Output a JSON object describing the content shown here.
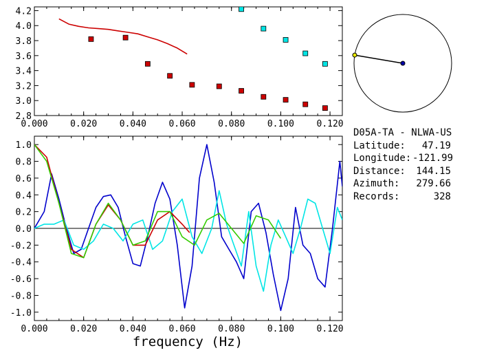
{
  "station": {
    "title": "D05A-TA - NLWA-US",
    "rows": [
      {
        "label": "Latitude:",
        "value": "47.19"
      },
      {
        "label": "Longitude:",
        "value": "-121.99"
      },
      {
        "label": "Distance:",
        "value": "144.15"
      },
      {
        "label": "Azimuth:",
        "value": "279.66"
      },
      {
        "label": "Records:",
        "value": "328"
      }
    ]
  },
  "colors": {
    "observed": "#cc0000",
    "cyan": "#00e5e5",
    "blue": "#0000cc",
    "green": "#33cc00",
    "azimuth_marker": "#e8e800"
  },
  "azimuth_deg": 279.66,
  "chart_data": [
    {
      "type": "scatter",
      "title": "",
      "xlabel": "",
      "ylabel": "",
      "xlim": [
        0.0,
        0.125
      ],
      "ylim": [
        2.8,
        4.25
      ],
      "xticks": [
        "0.000",
        "0.020",
        "0.040",
        "0.060",
        "0.080",
        "0.100",
        "0.120"
      ],
      "yticks": [
        "2.8",
        "3.0",
        "3.2",
        "3.4",
        "3.6",
        "3.8",
        "4.0",
        "4.2"
      ],
      "series": [
        {
          "kind": "points",
          "color": "red",
          "x": [
            0.023,
            0.037,
            0.046,
            0.055,
            0.064,
            0.075,
            0.084,
            0.093,
            0.102,
            0.11,
            0.118
          ],
          "y": [
            3.82,
            3.84,
            3.49,
            3.33,
            3.21,
            3.19,
            3.13,
            3.05,
            3.01,
            2.95,
            2.9
          ]
        },
        {
          "kind": "points",
          "color": "cyan",
          "x": [
            0.084,
            0.093,
            0.102,
            0.11,
            0.118
          ],
          "y": [
            4.22,
            3.96,
            3.81,
            3.63,
            3.49
          ]
        },
        {
          "kind": "line",
          "color": "red",
          "x": [
            0.01,
            0.014,
            0.018,
            0.022,
            0.026,
            0.03,
            0.034,
            0.038,
            0.042,
            0.046,
            0.05,
            0.054,
            0.058,
            0.062
          ],
          "y": [
            4.09,
            4.02,
            3.99,
            3.97,
            3.96,
            3.95,
            3.93,
            3.91,
            3.89,
            3.85,
            3.81,
            3.76,
            3.7,
            3.62
          ]
        }
      ]
    },
    {
      "type": "line",
      "title": "",
      "xlabel": "frequency (Hz)",
      "ylabel": "",
      "xlim": [
        0.0,
        0.125
      ],
      "ylim": [
        -1.1,
        1.1
      ],
      "xticks": [
        "0.000",
        "0.020",
        "0.040",
        "0.060",
        "0.080",
        "0.100",
        "0.120"
      ],
      "yticks": [
        "1.0",
        "0.8",
        "0.6",
        "0.4",
        "0.2",
        "0.0",
        "-0.2",
        "-0.4",
        "-0.6",
        "-0.8",
        "-1.0"
      ],
      "series": [
        {
          "color": "blue",
          "x": [
            0.0,
            0.004,
            0.007,
            0.01,
            0.013,
            0.016,
            0.019,
            0.022,
            0.025,
            0.028,
            0.031,
            0.034,
            0.037,
            0.04,
            0.043,
            0.046,
            0.049,
            0.052,
            0.055,
            0.058,
            0.061,
            0.064,
            0.067,
            0.07,
            0.073,
            0.076,
            0.079,
            0.082,
            0.085,
            0.088,
            0.091,
            0.094,
            0.097,
            0.1,
            0.103,
            0.106,
            0.109,
            0.112,
            0.115,
            0.118,
            0.121,
            0.124,
            0.125
          ],
          "y": [
            0.0,
            0.2,
            0.65,
            0.35,
            0.0,
            -0.3,
            -0.25,
            0.0,
            0.25,
            0.38,
            0.4,
            0.25,
            -0.1,
            -0.42,
            -0.45,
            -0.1,
            0.3,
            0.55,
            0.35,
            -0.2,
            -0.95,
            -0.45,
            0.6,
            1.0,
            0.55,
            -0.1,
            -0.25,
            -0.4,
            -0.6,
            0.2,
            0.3,
            -0.05,
            -0.55,
            -0.98,
            -0.6,
            0.25,
            -0.2,
            -0.3,
            -0.6,
            -0.7,
            0.0,
            0.8,
            0.5
          ]
        },
        {
          "color": "cyan",
          "x": [
            0.0,
            0.004,
            0.008,
            0.012,
            0.016,
            0.02,
            0.024,
            0.028,
            0.032,
            0.036,
            0.04,
            0.044,
            0.048,
            0.052,
            0.056,
            0.06,
            0.064,
            0.068,
            0.072,
            0.075,
            0.078,
            0.081,
            0.084,
            0.087,
            0.09,
            0.093,
            0.096,
            0.099,
            0.102,
            0.105,
            0.108,
            0.111,
            0.114,
            0.117,
            0.12,
            0.123,
            0.125
          ],
          "y": [
            0.0,
            0.05,
            0.05,
            0.1,
            -0.2,
            -0.25,
            -0.15,
            0.05,
            0.0,
            -0.15,
            0.05,
            0.1,
            -0.25,
            -0.15,
            0.2,
            0.35,
            -0.1,
            -0.3,
            0.0,
            0.45,
            0.05,
            -0.2,
            -0.45,
            0.2,
            -0.45,
            -0.75,
            -0.2,
            0.1,
            -0.1,
            -0.3,
            0.0,
            0.35,
            0.3,
            0.0,
            -0.3,
            0.25,
            0.1
          ]
        },
        {
          "color": "red",
          "x": [
            0.0,
            0.005,
            0.01,
            0.015,
            0.02,
            0.025,
            0.03,
            0.035,
            0.04,
            0.045,
            0.05,
            0.055,
            0.06,
            0.063
          ],
          "y": [
            1.0,
            0.85,
            0.3,
            -0.25,
            -0.35,
            0.05,
            0.28,
            0.1,
            -0.2,
            -0.2,
            0.1,
            0.2,
            0.05,
            -0.05
          ]
        },
        {
          "color": "green",
          "x": [
            0.0,
            0.005,
            0.01,
            0.015,
            0.02,
            0.025,
            0.03,
            0.035,
            0.04,
            0.045,
            0.05,
            0.055,
            0.06,
            0.065,
            0.07,
            0.075,
            0.08,
            0.085,
            0.09,
            0.095,
            0.1
          ],
          "y": [
            1.0,
            0.8,
            0.3,
            -0.3,
            -0.35,
            0.05,
            0.3,
            0.1,
            -0.2,
            -0.15,
            0.2,
            0.2,
            -0.1,
            -0.2,
            0.1,
            0.18,
            0.0,
            -0.18,
            0.15,
            0.1,
            -0.12
          ]
        }
      ]
    }
  ]
}
